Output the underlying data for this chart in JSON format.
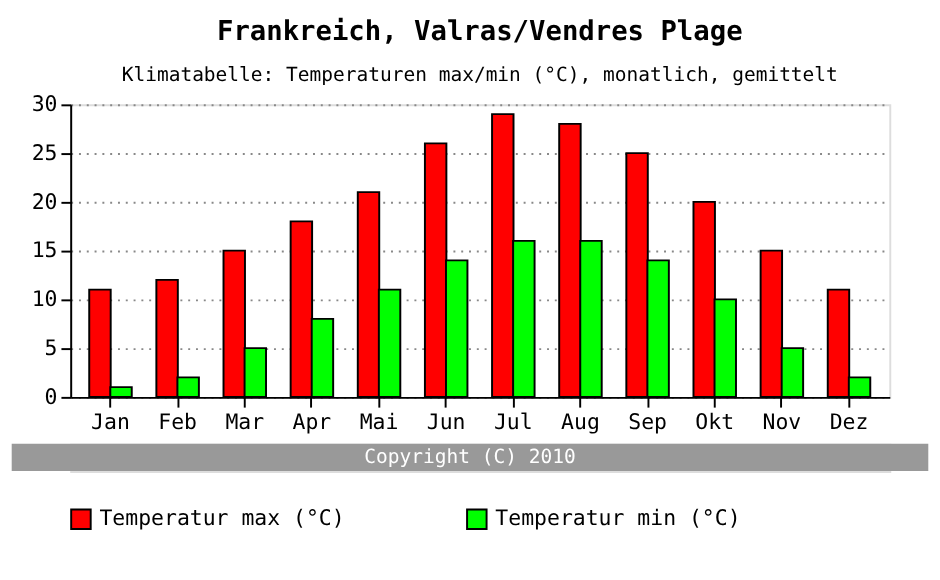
{
  "chart_data": {
    "type": "bar",
    "title": "Frankreich, Valras/Vendres Plage",
    "subtitle": "Klimatabelle: Temperaturen max/min (°C), monatlich, gemittelt",
    "categories": [
      "Jan",
      "Feb",
      "Mar",
      "Apr",
      "Mai",
      "Jun",
      "Jul",
      "Aug",
      "Sep",
      "Okt",
      "Nov",
      "Dez"
    ],
    "series": [
      {
        "name": "Temperatur max (°C)",
        "color": "#ff0000",
        "values": [
          11,
          12,
          15,
          18,
          21,
          26,
          29,
          28,
          25,
          20,
          15,
          11
        ]
      },
      {
        "name": "Temperatur min (°C)",
        "color": "#00ff00",
        "values": [
          1,
          2,
          5,
          8,
          11,
          14,
          16,
          16,
          14,
          10,
          5,
          2
        ]
      }
    ],
    "ylim": [
      0,
      30
    ],
    "yticks": [
      0,
      5,
      10,
      15,
      20,
      25,
      30
    ],
    "grid": "y",
    "legend": "bottom",
    "annotations": [
      "Copyright (C) 2010"
    ]
  }
}
